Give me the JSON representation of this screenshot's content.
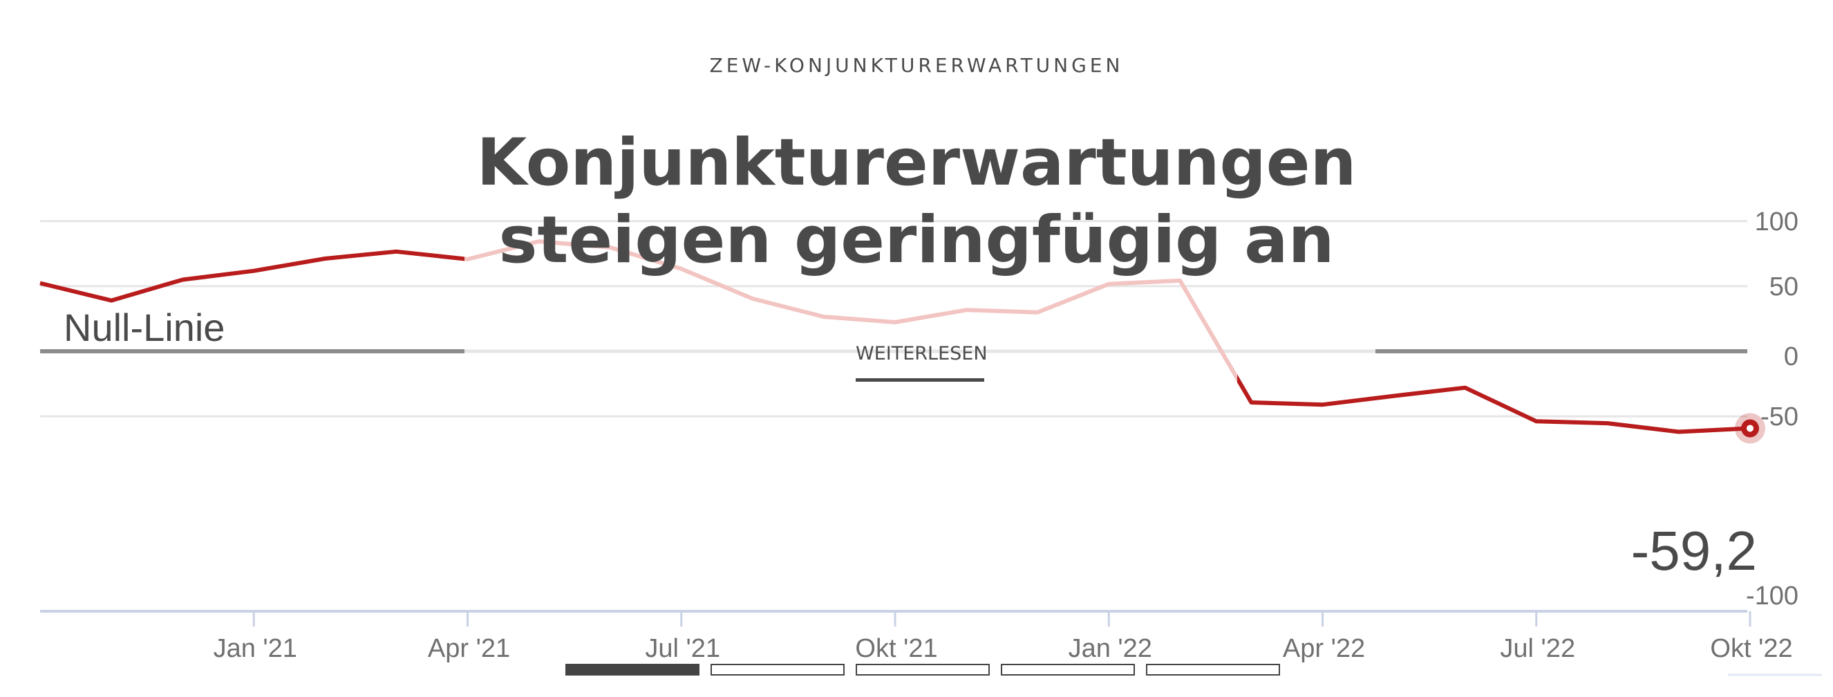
{
  "kicker": "ZEW-KONJUNKTURERWARTUNGEN",
  "headline": {
    "line1": "Konjunkturerwartungen",
    "line2": "steigen geringfügig an"
  },
  "read_more_label": "WEITERLESEN",
  "slides": {
    "count": 5,
    "active_index": 0
  },
  "colors": {
    "line": "#b81c1c",
    "line_faded": "#f2c4c2",
    "zero_line": "#8c8c8c",
    "grid": "#e6e6e6",
    "axis": "#c9d1e6",
    "text": "#4a4a4a",
    "tick": "#707070"
  },
  "chart_data": {
    "type": "line",
    "title": "",
    "xlabel": "",
    "ylabel": "",
    "ylim": [
      -100,
      100
    ],
    "yticks": [
      100,
      50,
      0,
      -50,
      -100
    ],
    "ytick_labels": [
      "100",
      "50",
      "0",
      "-50",
      "-100"
    ],
    "xticks": [
      {
        "x": "2021-01",
        "label": "Jan '21"
      },
      {
        "x": "2021-04",
        "label": "Apr '21"
      },
      {
        "x": "2021-07",
        "label": "Jul '21"
      },
      {
        "x": "2021-10",
        "label": "Okt '21"
      },
      {
        "x": "2022-01",
        "label": "Jan '22"
      },
      {
        "x": "2022-04",
        "label": "Apr '22"
      },
      {
        "x": "2022-07",
        "label": "Jul '22"
      },
      {
        "x": "2022-10",
        "label": "Okt '22"
      }
    ],
    "grid": true,
    "zero_line_label": "Null-Linie",
    "last_value_label": "-59,2",
    "series": [
      {
        "x": [
          "2020-10",
          "2020-11",
          "2020-12",
          "2021-01",
          "2021-02",
          "2021-03",
          "2021-04",
          "2021-05",
          "2021-06",
          "2021-07",
          "2021-08",
          "2021-09",
          "2021-10",
          "2021-11",
          "2021-12",
          "2022-01",
          "2022-02",
          "2022-03",
          "2022-04",
          "2022-05",
          "2022-06",
          "2022-07",
          "2022-08",
          "2022-09",
          "2022-10"
        ],
        "values": [
          52.3,
          39.0,
          55.0,
          61.8,
          71.2,
          76.6,
          70.7,
          84.4,
          79.8,
          63.3,
          40.4,
          26.5,
          22.3,
          31.7,
          29.9,
          51.7,
          54.3,
          -39.3,
          -41.0,
          -34.3,
          -28.0,
          -53.8,
          -55.3,
          -61.9,
          -59.2
        ]
      }
    ]
  }
}
